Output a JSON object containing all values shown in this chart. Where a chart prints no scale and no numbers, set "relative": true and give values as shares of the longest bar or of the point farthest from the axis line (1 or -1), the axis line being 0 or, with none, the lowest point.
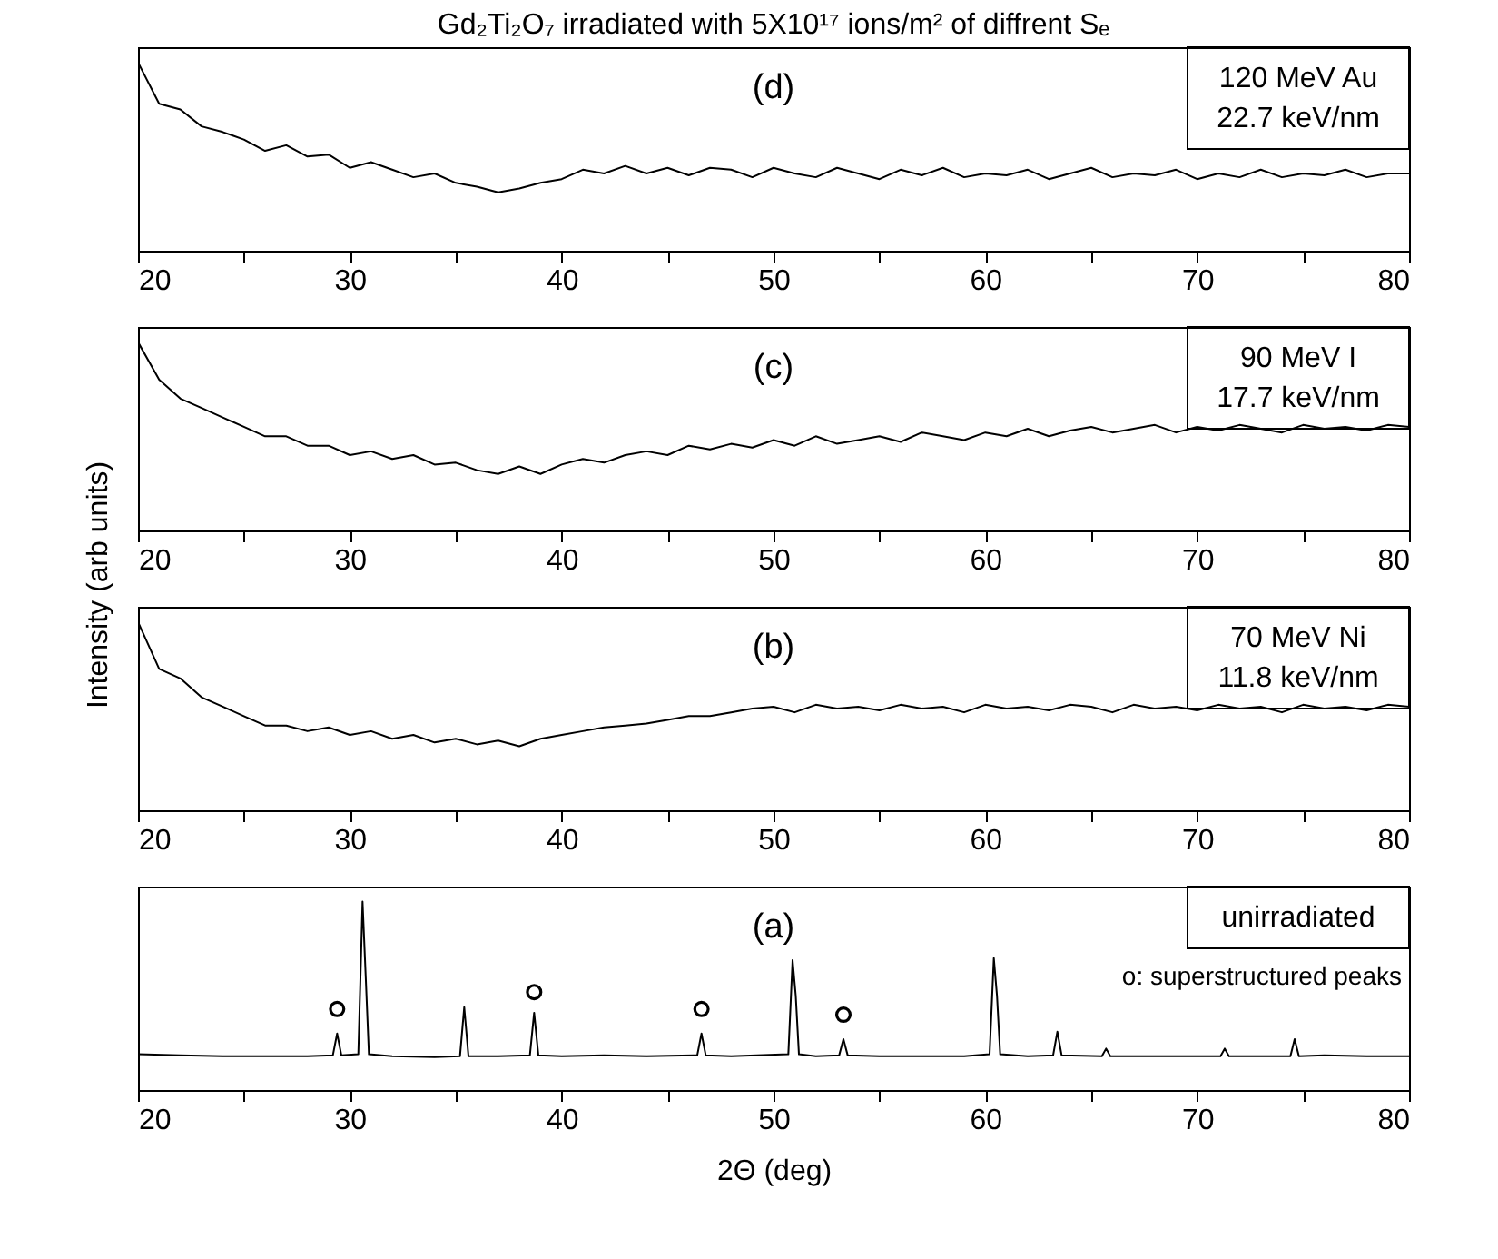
{
  "chart_data": [
    {
      "type": "line",
      "title": "Gd₂Ti₂O₇ irradiated with 5X10¹⁷ ions/m² of diffrent Sₑ",
      "relative": true,
      "xlim": [
        20,
        80
      ],
      "xticks": [
        20,
        {
          "value": 25,
          "label": null
        },
        30,
        {
          "value": 35,
          "label": null
        },
        40,
        {
          "value": 45,
          "label": null
        },
        50,
        {
          "value": 55,
          "label": null
        },
        60,
        {
          "value": 65,
          "label": null
        },
        70,
        {
          "value": 75,
          "label": null
        },
        80
      ],
      "tick_labels": "x",
      "annotations": [
        "(d)",
        "120 MeV Au",
        "22.7 keV/nm"
      ],
      "x": [
        20,
        21,
        22,
        23,
        24,
        25,
        26,
        27,
        28,
        29,
        30,
        31,
        32,
        33,
        34,
        35,
        36,
        37,
        38,
        39,
        40,
        41,
        42,
        43,
        44,
        45,
        46,
        47,
        48,
        49,
        50,
        51,
        52,
        53,
        54,
        55,
        56,
        57,
        58,
        59,
        60,
        61,
        62,
        63,
        64,
        65,
        66,
        67,
        68,
        69,
        70,
        71,
        72,
        73,
        74,
        75,
        76,
        77,
        78,
        79,
        80
      ],
      "series": [
        {
          "color": "#000000",
          "values": [
            1,
            0.78,
            0.75,
            0.66,
            0.63,
            0.59,
            0.53,
            0.56,
            0.5,
            0.51,
            0.44,
            0.47,
            0.43,
            0.39,
            0.41,
            0.36,
            0.34,
            0.31,
            0.33,
            0.36,
            0.38,
            0.43,
            0.41,
            0.45,
            0.41,
            0.44,
            0.4,
            0.44,
            0.43,
            0.39,
            0.44,
            0.41,
            0.39,
            0.44,
            0.41,
            0.38,
            0.43,
            0.4,
            0.44,
            0.39,
            0.41,
            0.4,
            0.43,
            0.38,
            0.41,
            0.44,
            0.39,
            0.41,
            0.4,
            0.43,
            0.38,
            0.41,
            0.39,
            0.43,
            0.39,
            0.41,
            0.4,
            0.43,
            0.39,
            0.41,
            0.41
          ]
        }
      ]
    },
    {
      "type": "line",
      "ylabel": "Intensity (arb units)",
      "relative": true,
      "xlim": [
        20,
        80
      ],
      "xticks": [
        20,
        {
          "value": 25,
          "label": null
        },
        30,
        {
          "value": 35,
          "label": null
        },
        40,
        {
          "value": 45,
          "label": null
        },
        50,
        {
          "value": 55,
          "label": null
        },
        60,
        {
          "value": 65,
          "label": null
        },
        70,
        {
          "value": 75,
          "label": null
        },
        80
      ],
      "tick_labels": "x",
      "annotations": [
        "(c)",
        "90 MeV I",
        "17.7 keV/nm"
      ],
      "x": [
        20,
        21,
        22,
        23,
        24,
        25,
        26,
        27,
        28,
        29,
        30,
        31,
        32,
        33,
        34,
        35,
        36,
        37,
        38,
        39,
        40,
        41,
        42,
        43,
        44,
        45,
        46,
        47,
        48,
        49,
        50,
        51,
        52,
        53,
        54,
        55,
        56,
        57,
        58,
        59,
        60,
        61,
        62,
        63,
        64,
        65,
        66,
        67,
        68,
        69,
        70,
        71,
        72,
        73,
        74,
        75,
        76,
        77,
        78,
        79,
        80
      ],
      "series": [
        {
          "color": "#000000",
          "values": [
            1,
            0.8,
            0.7,
            0.65,
            0.6,
            0.55,
            0.5,
            0.5,
            0.45,
            0.45,
            0.4,
            0.42,
            0.38,
            0.4,
            0.35,
            0.36,
            0.32,
            0.3,
            0.34,
            0.3,
            0.35,
            0.38,
            0.36,
            0.4,
            0.42,
            0.4,
            0.45,
            0.43,
            0.46,
            0.44,
            0.48,
            0.45,
            0.5,
            0.46,
            0.48,
            0.5,
            0.47,
            0.52,
            0.5,
            0.48,
            0.52,
            0.5,
            0.54,
            0.5,
            0.53,
            0.55,
            0.52,
            0.54,
            0.56,
            0.52,
            0.55,
            0.53,
            0.56,
            0.54,
            0.52,
            0.56,
            0.54,
            0.55,
            0.53,
            0.56,
            0.55
          ]
        }
      ]
    },
    {
      "type": "line",
      "relative": true,
      "xlim": [
        20,
        80
      ],
      "xticks": [
        20,
        {
          "value": 25,
          "label": null
        },
        30,
        {
          "value": 35,
          "label": null
        },
        40,
        {
          "value": 45,
          "label": null
        },
        50,
        {
          "value": 55,
          "label": null
        },
        60,
        {
          "value": 65,
          "label": null
        },
        70,
        {
          "value": 75,
          "label": null
        },
        80
      ],
      "tick_labels": "x",
      "annotations": [
        "(b)",
        "70 MeV Ni",
        "11.8 keV/nm"
      ],
      "x": [
        20,
        21,
        22,
        23,
        24,
        25,
        26,
        27,
        28,
        29,
        30,
        31,
        32,
        33,
        34,
        35,
        36,
        37,
        38,
        39,
        40,
        41,
        42,
        43,
        44,
        45,
        46,
        47,
        48,
        49,
        50,
        51,
        52,
        53,
        54,
        55,
        56,
        57,
        58,
        59,
        60,
        61,
        62,
        63,
        64,
        65,
        66,
        67,
        68,
        69,
        70,
        71,
        72,
        73,
        74,
        75,
        76,
        77,
        78,
        79,
        80
      ],
      "series": [
        {
          "color": "#000000",
          "values": [
            1,
            0.75,
            0.7,
            0.6,
            0.55,
            0.5,
            0.45,
            0.45,
            0.42,
            0.44,
            0.4,
            0.42,
            0.38,
            0.4,
            0.36,
            0.38,
            0.35,
            0.37,
            0.34,
            0.38,
            0.4,
            0.42,
            0.44,
            0.45,
            0.46,
            0.48,
            0.5,
            0.5,
            0.52,
            0.54,
            0.55,
            0.52,
            0.56,
            0.54,
            0.55,
            0.53,
            0.56,
            0.54,
            0.55,
            0.52,
            0.56,
            0.54,
            0.55,
            0.53,
            0.56,
            0.55,
            0.52,
            0.56,
            0.54,
            0.55,
            0.53,
            0.56,
            0.54,
            0.55,
            0.52,
            0.56,
            0.54,
            0.55,
            0.53,
            0.56,
            0.55
          ]
        }
      ]
    },
    {
      "type": "line",
      "xlabel": "2Θ (deg)",
      "relative": true,
      "xlim": [
        20,
        80
      ],
      "xticks": [
        20,
        {
          "value": 25,
          "label": null
        },
        30,
        {
          "value": 35,
          "label": null
        },
        40,
        {
          "value": 45,
          "label": null
        },
        50,
        {
          "value": 55,
          "label": null
        },
        60,
        {
          "value": 65,
          "label": null
        },
        70,
        {
          "value": 75,
          "label": null
        },
        80
      ],
      "tick_labels": "x",
      "annotations": [
        "(a)",
        "unirradiated",
        "o: superstructured peaks"
      ],
      "x": [
        20,
        22,
        24,
        26,
        28,
        29.2,
        29.4,
        29.6,
        30.4,
        30.6,
        30.75,
        30.9,
        32,
        34,
        35.2,
        35.4,
        35.6,
        37,
        38.5,
        38.7,
        38.9,
        40,
        42,
        44,
        46.4,
        46.6,
        46.8,
        48,
        50.7,
        50.9,
        51.05,
        51.2,
        52,
        53.1,
        53.3,
        53.5,
        55,
        57,
        59,
        60.2,
        60.4,
        60.55,
        60.7,
        62,
        63.2,
        63.4,
        63.6,
        65.5,
        65.7,
        65.9,
        68,
        71.1,
        71.3,
        71.5,
        73,
        74.4,
        74.6,
        74.8,
        76,
        78,
        80
      ],
      "series": [
        {
          "color": "#000000",
          "values": [
            0.19,
            0.185,
            0.18,
            0.18,
            0.18,
            0.185,
            0.3,
            0.185,
            0.19,
            1,
            0.6,
            0.19,
            0.18,
            0.175,
            0.18,
            0.44,
            0.18,
            0.18,
            0.185,
            0.41,
            0.185,
            0.18,
            0.185,
            0.18,
            0.185,
            0.3,
            0.185,
            0.18,
            0.19,
            0.69,
            0.5,
            0.19,
            0.18,
            0.185,
            0.27,
            0.185,
            0.18,
            0.18,
            0.18,
            0.19,
            0.7,
            0.5,
            0.19,
            0.18,
            0.185,
            0.31,
            0.185,
            0.18,
            0.22,
            0.18,
            0.18,
            0.18,
            0.22,
            0.18,
            0.18,
            0.18,
            0.27,
            0.18,
            0.185,
            0.18,
            0.18
          ]
        },
        {
          "type": "scatter",
          "marker": "circle",
          "color": "#000000",
          "x": [
            29.4,
            38.7,
            46.6,
            53.3
          ],
          "values": [
            0.43,
            0.52,
            0.43,
            0.4
          ]
        }
      ]
    }
  ]
}
